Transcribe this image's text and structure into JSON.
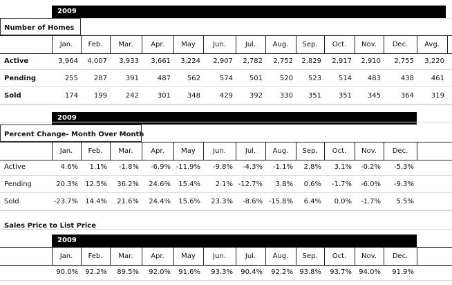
{
  "section1": {
    "year": "2009",
    "title": "Number of Homes",
    "headers": [
      "Jan.",
      "Feb.",
      "Mar.",
      "Apr.",
      "May",
      "Jun.",
      "Jul.",
      "Aug.",
      "Sep.",
      "Oct.",
      "Nov.",
      "Dec.",
      "Avg."
    ],
    "rows": [
      {
        "label": "Active",
        "values": [
          "3,964",
          "4,007",
          "3,933",
          "3,661",
          "3,224",
          "2,907",
          "2,782",
          "2,752",
          "2,829",
          "2,917",
          "2,910",
          "2,755",
          "3,220"
        ]
      },
      {
        "label": "Pending",
        "values": [
          "255",
          "287",
          "391",
          "487",
          "562",
          "574",
          "501",
          "520",
          "523",
          "514",
          "483",
          "438",
          "461"
        ]
      },
      {
        "label": "Sold",
        "values": [
          "174",
          "199",
          "242",
          "301",
          "348",
          "429",
          "392",
          "330",
          "351",
          "351",
          "345",
          "364",
          "319"
        ]
      }
    ]
  },
  "section2": {
    "year": "2009",
    "title": "Percent Change- Month Over Month",
    "headers": [
      "Jan.",
      "Feb.",
      "Mar.",
      "Apr.",
      "May",
      "Jun.",
      "Jul.",
      "Aug.",
      "Sep.",
      "Oct.",
      "Nov.",
      "Dec."
    ],
    "rows": [
      {
        "label": "Active",
        "values": [
          "4.6%",
          "1.1%",
          "-1.8%",
          "-6.9%",
          "-11.9%",
          "-9.8%",
          "-4.3%",
          "-1.1%",
          "2.8%",
          "3.1%",
          "-0.2%",
          "-5.3%"
        ]
      },
      {
        "label": "Pending",
        "values": [
          "20.3%",
          "12.5%",
          "36.2%",
          "24.6%",
          "15.4%",
          "2.1%",
          "-12.7%",
          "3.8%",
          "0.6%",
          "-1.7%",
          "-6.0%",
          "-9.3%"
        ]
      },
      {
        "label": "Sold",
        "values": [
          "-23.7%",
          "14.4%",
          "21.6%",
          "24.4%",
          "15.6%",
          "23.3%",
          "-8.6%",
          "-15.8%",
          "6.4%",
          "0.0%",
          "-1.7%",
          "5.5%"
        ]
      }
    ]
  },
  "section3": {
    "title": "Sales Price to List Price",
    "year": "2009",
    "headers": [
      "Jan.",
      "Feb.",
      "Mar.",
      "Apr.",
      "May",
      "Jun.",
      "Jul.",
      "Aug.",
      "Sep.",
      "Oct.",
      "Nov.",
      "Dec."
    ],
    "values": [
      "90.0%",
      "92.2%",
      "89.5%",
      "92.0%",
      "91.6%",
      "93.3%",
      "90.4%",
      "92.2%",
      "93.8%",
      "93.7%",
      "94.0%",
      "91.9%"
    ]
  }
}
